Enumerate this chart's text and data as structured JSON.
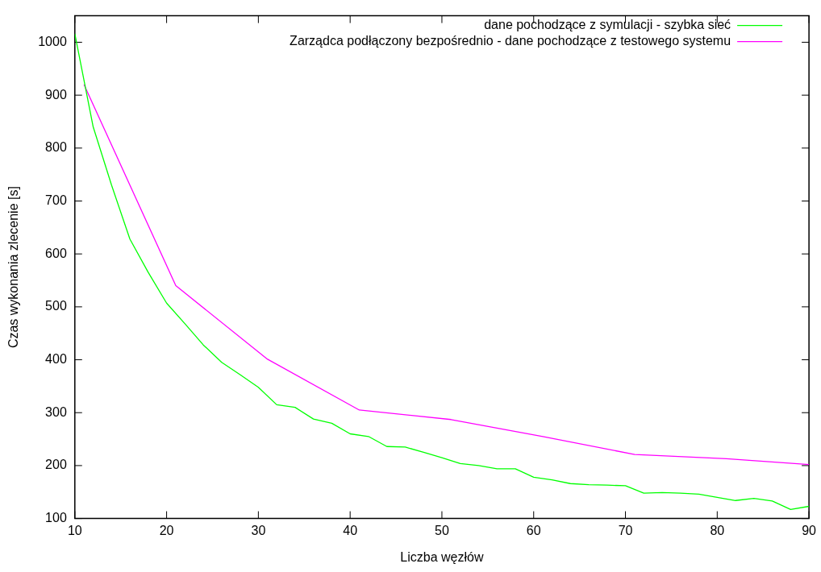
{
  "chart_data": {
    "type": "line",
    "xlabel": "Liczba węzłów",
    "ylabel": "Czas wykonania zlecenie [s]",
    "xlim": [
      10,
      90
    ],
    "xticks": [
      10,
      20,
      30,
      40,
      50,
      60,
      70,
      80,
      90
    ],
    "ylim": [
      100,
      1050
    ],
    "yticks": [
      100,
      200,
      300,
      400,
      500,
      600,
      700,
      800,
      900,
      1000
    ],
    "grid": false,
    "legend": "top right",
    "marker": "none",
    "line_style": "solid",
    "series": [
      {
        "name": "dane pochodzące z symulacji - szybka sieć",
        "color": "#00ff00",
        "x": [
          10,
          12,
          14,
          16,
          18,
          20,
          22,
          24,
          26,
          28,
          30,
          32,
          34,
          36,
          38,
          40,
          42,
          44,
          46,
          48,
          50,
          52,
          54,
          56,
          58,
          60,
          62,
          64,
          66,
          68,
          70,
          72,
          74,
          76,
          78,
          80,
          82,
          84,
          86,
          88,
          90
        ],
        "values": [
          1016,
          840,
          730,
          628,
          565,
          507,
          468,
          428,
          395,
          372,
          348,
          315,
          310,
          288,
          280,
          260,
          255,
          236,
          235,
          225,
          215,
          204,
          200,
          194,
          194,
          178,
          173,
          166,
          164,
          163,
          162,
          148,
          149,
          148,
          146,
          140,
          134,
          138,
          133,
          117,
          123
        ]
      },
      {
        "name": "Zarządca podłączony bezpośrednio - dane pochodzące z testowego systemu",
        "color": "#ff00ff",
        "x": [
          11,
          21,
          31,
          41,
          51,
          61,
          71,
          81,
          90
        ],
        "values": [
          920,
          540,
          401,
          305,
          287,
          255,
          221,
          213,
          202
        ]
      }
    ]
  }
}
